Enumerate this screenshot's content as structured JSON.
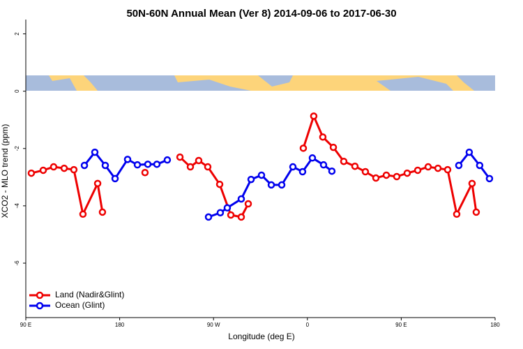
{
  "chart_data": {
    "type": "line",
    "title": "50N-60N Annual Mean (Ver 8)   2014-09-06 to 2017-06-30",
    "x_label": "Longitude (deg E)",
    "y_label": "XCO2 - MLO trend (ppm)",
    "xlim": [
      90,
      540
    ],
    "ylim": [
      -7.9,
      2.5
    ],
    "xticks": [
      {
        "value": 90,
        "label": "90 E"
      },
      {
        "value": 180,
        "label": "180"
      },
      {
        "value": 270,
        "label": "90 W"
      },
      {
        "value": 360,
        "label": "0"
      },
      {
        "value": 450,
        "label": "90 E"
      },
      {
        "value": 540,
        "label": "180"
      }
    ],
    "yticks": [
      2,
      0,
      -2,
      -4,
      -6
    ],
    "grid": false,
    "legend": "bottom-left",
    "series": [
      {
        "name": "Land (Nadir&Glint)",
        "color": "#ee0000",
        "x": [
          95.3,
          106.7,
          116.7,
          126.8,
          136.1,
          144.8,
          158.9,
          163.5,
          null,
          204.3,
          null,
          237.8,
          247.8,
          255.8,
          264.5,
          275.9,
          286.6,
          296.6,
          303.3,
          null,
          356.1,
          366.1,
          374.8,
          384.9,
          394.9,
          405.6,
          415.6,
          425.7,
          435.7,
          445.7,
          455.7,
          465.8,
          475.8,
          485.2,
          494.5,
          503.2,
          517.9,
          521.9
        ],
        "values": [
          -2.86,
          -2.76,
          -2.64,
          -2.69,
          -2.74,
          -4.29,
          -3.22,
          -4.22,
          null,
          -2.84,
          null,
          -2.3,
          -2.64,
          -2.42,
          -2.64,
          -3.25,
          -4.32,
          -4.39,
          -3.93,
          null,
          -1.99,
          -0.87,
          -1.6,
          -1.96,
          -2.45,
          -2.62,
          -2.81,
          -3.03,
          -2.93,
          -2.98,
          -2.86,
          -2.76,
          -2.64,
          -2.69,
          -2.74,
          -4.29,
          -3.22,
          -4.22
        ]
      },
      {
        "name": "Ocean (Glint)",
        "color": "#0000ee",
        "x": [
          146.2,
          156.2,
          166.2,
          175.6,
          187.6,
          197.0,
          207.0,
          215.7,
          225.7,
          null,
          265.2,
          276.5,
          283.2,
          296.6,
          306.0,
          316.0,
          325.4,
          335.4,
          346.1,
          355.4,
          364.8,
          375.5,
          383.5,
          null,
          505.2,
          515.2,
          525.2,
          534.6
        ],
        "values": [
          -2.59,
          -2.13,
          -2.59,
          -3.05,
          -2.38,
          -2.57,
          -2.55,
          -2.55,
          -2.4,
          null,
          -4.39,
          -4.24,
          -4.07,
          -3.76,
          -3.08,
          -2.93,
          -3.27,
          -3.27,
          -2.64,
          -2.81,
          -2.33,
          -2.57,
          -2.79,
          null,
          -2.59,
          -2.13,
          -2.59,
          -3.05
        ]
      }
    ]
  }
}
